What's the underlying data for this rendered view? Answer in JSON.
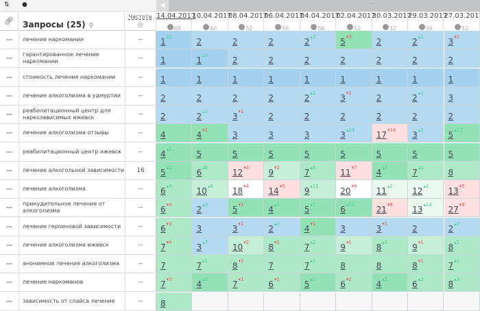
{
  "toolbar": {
    "sort_icon": "⇅",
    "tag_icon": "●"
  },
  "header": {
    "title": "Запросы (25)",
    "frequency_label": "Частота"
  },
  "colors": {
    "B": "#a4d2ee",
    "b": "#b4daf1",
    "G": "#93e2b6",
    "g": "#ade9c7",
    "l": "#c5efd7",
    "p": "#eaf8ef",
    "r": "#fde0df",
    "w": "#ffffff",
    "e": "#f7f7f7"
  },
  "dates": [
    {
      "date": "14.04.2017",
      "count": "68"
    },
    {
      "date": "10.04.2017",
      "count": "60"
    },
    {
      "date": "08.04.2017",
      "count": "52"
    },
    {
      "date": "06.04.2017",
      "count": "56"
    },
    {
      "date": "04.04.2017",
      "count": "56"
    },
    {
      "date": "02.04.2017",
      "count": "52"
    },
    {
      "date": "30.03.2017",
      "count": "52"
    },
    {
      "date": "29.03.2017",
      "count": "56"
    },
    {
      "date": "27.03.2017",
      "count": "52"
    }
  ],
  "rows": [
    {
      "query": "лечение наркомании",
      "freq": "--",
      "colors": "BbbbbGbbb",
      "values": [
        1,
        2,
        2,
        2,
        2,
        5,
        2,
        2,
        3
      ],
      "deltas": [
        -1,
        0,
        0,
        0,
        -3,
        3,
        0,
        -1,
        1
      ]
    },
    {
      "query": "гарантированное лечение наркомании",
      "freq": "--",
      "colors": "BBbbbbbbb",
      "values": [
        1,
        1,
        2,
        2,
        2,
        2,
        2,
        2,
        2
      ],
      "deltas": [
        0,
        -1,
        0,
        0,
        0,
        0,
        0,
        0,
        0
      ]
    },
    {
      "query": "стоимость лечения наркомании",
      "freq": "--",
      "colors": "BBBBBBBBB",
      "values": [
        1,
        1,
        1,
        1,
        1,
        1,
        1,
        1,
        1
      ],
      "deltas": [
        0,
        0,
        0,
        0,
        0,
        0,
        0,
        0,
        0
      ]
    },
    {
      "query": "лечение алкоголизма в удмуртии",
      "freq": "--",
      "colors": "bbbbbbbbb",
      "values": [
        2,
        2,
        2,
        2,
        2,
        3,
        2,
        2,
        3
      ],
      "deltas": [
        0,
        0,
        0,
        0,
        -1,
        1,
        0,
        -1,
        0
      ]
    },
    {
      "query": "реабилитационный центр для наркозависимых ижевск",
      "freq": "--",
      "colors": "bbbbbbbbb",
      "values": [
        2,
        2,
        3,
        2,
        2,
        2,
        2,
        2,
        2
      ],
      "deltas": [
        0,
        -1,
        1,
        0,
        0,
        0,
        0,
        0,
        0
      ]
    },
    {
      "query": "лечение алкоголизма отзывы",
      "freq": "--",
      "colors": "GGbbbbrbG",
      "values": [
        4,
        4,
        3,
        3,
        3,
        3,
        17,
        3,
        5
      ],
      "deltas": [
        0,
        1,
        0,
        0,
        0,
        -14,
        14,
        -2,
        -12
      ]
    },
    {
      "query": "реабилитационный центр ижевск",
      "freq": "--",
      "colors": "GGGGGGGGG",
      "values": [
        4,
        5,
        5,
        5,
        5,
        5,
        5,
        5,
        5
      ],
      "deltas": [
        -1,
        0,
        0,
        0,
        0,
        0,
        0,
        0,
        0
      ]
    },
    {
      "query": "лечение алкогольной зависимости",
      "freq": "16",
      "colors": "GgrlgrGgg",
      "values": [
        5,
        6,
        12,
        9,
        7,
        11,
        4,
        7,
        8
      ],
      "deltas": [
        -1,
        -6,
        3,
        2,
        -4,
        7,
        -3,
        -1,
        0
      ]
    },
    {
      "query": "лечение алкоголизма",
      "freq": "--",
      "colors": "glwrlwppr",
      "values": [
        6,
        10,
        18,
        14,
        9,
        20,
        11,
        12,
        13
      ],
      "deltas": [
        -4,
        -8,
        4,
        5,
        -11,
        9,
        -1,
        -1,
        5
      ]
    },
    {
      "query": "принудительное лечение от алкоголизма",
      "freq": "--",
      "colors": "gbGGGGrpr",
      "values": [
        6,
        2,
        5,
        4,
        5,
        6,
        21,
        13,
        27
      ],
      "deltas": [
        4,
        -3,
        1,
        -1,
        -1,
        -15,
        8,
        -14,
        8
      ]
    },
    {
      "query": "лечение героиновой зависимости",
      "freq": "--",
      "colors": "gbbbGbbbb",
      "values": [
        6,
        3,
        3,
        2,
        4,
        3,
        3,
        2,
        2
      ],
      "deltas": [
        3,
        0,
        1,
        -2,
        1,
        0,
        1,
        0,
        -3
      ]
    },
    {
      "query": "лечение алкоголизма ижевск",
      "freq": "--",
      "colors": "gblgglglg",
      "values": [
        7,
        3,
        10,
        8,
        7,
        9,
        8,
        9,
        8
      ],
      "deltas": [
        4,
        -7,
        2,
        1,
        -2,
        1,
        -1,
        1,
        -1
      ]
    },
    {
      "query": "анонимное лечение алкоголизма",
      "freq": "--",
      "colors": "ggggggggg",
      "values": [
        7,
        7,
        8,
        7,
        7,
        8,
        8,
        8,
        7
      ],
      "deltas": [
        0,
        -1,
        1,
        0,
        -1,
        0,
        0,
        1,
        -1
      ]
    },
    {
      "query": "лечение наркоманов",
      "freq": "--",
      "colors": "gGggGgGgg",
      "values": [
        7,
        4,
        7,
        6,
        5,
        6,
        4,
        6,
        8
      ],
      "deltas": [
        3,
        -3,
        1,
        1,
        -1,
        2,
        -2,
        -2,
        -3
      ]
    },
    {
      "query": "зависимость от спайса лечение",
      "freq": "--",
      "colors": "geeeeeeee",
      "values": [
        8,
        null,
        null,
        null,
        null,
        null,
        null,
        null,
        null
      ],
      "deltas": [
        0,
        0,
        0,
        0,
        0,
        0,
        0,
        0,
        0
      ]
    }
  ]
}
